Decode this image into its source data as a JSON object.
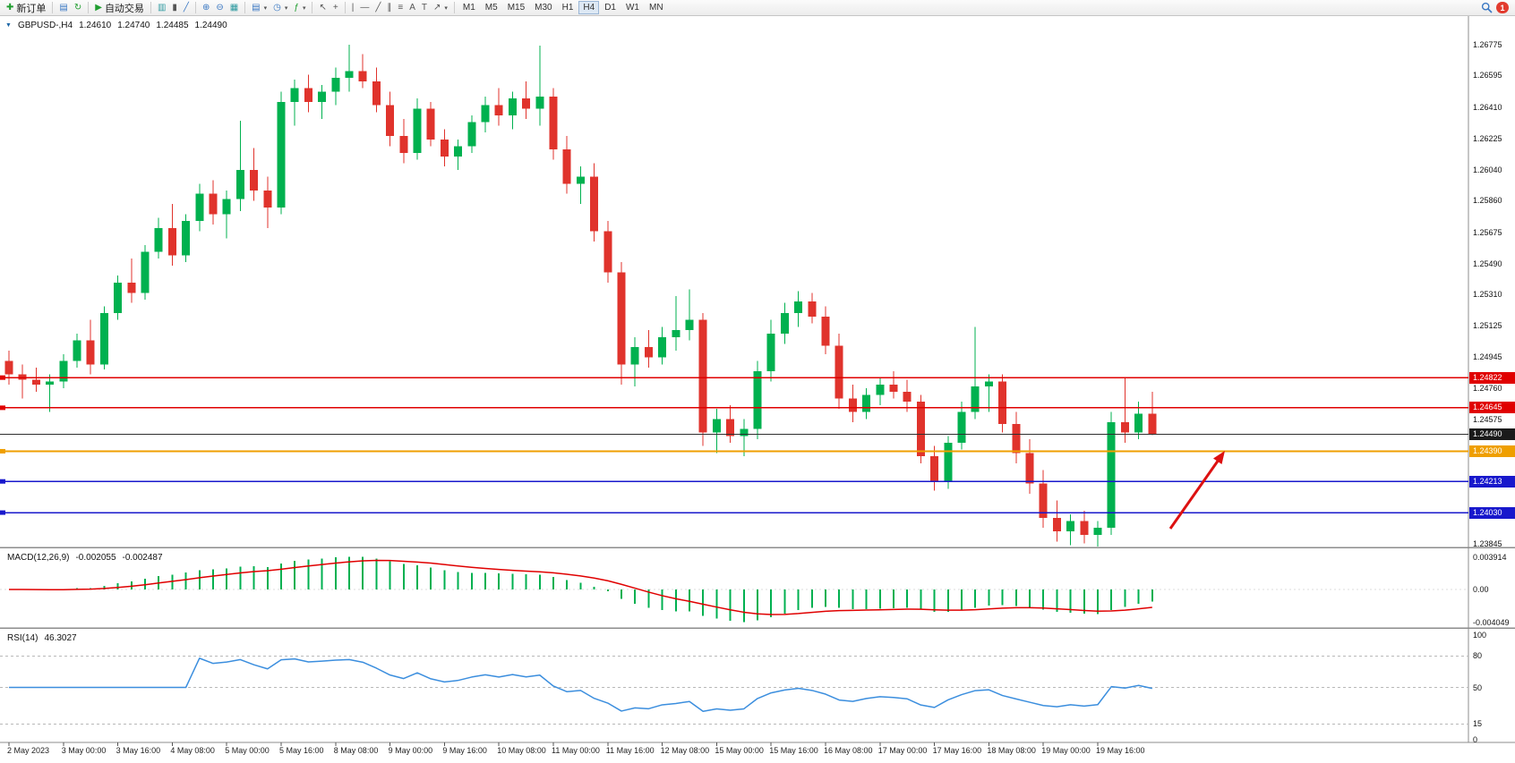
{
  "toolbar": {
    "new_order": "新订单",
    "auto_trading": "自动交易",
    "timeframes": [
      "M1",
      "M5",
      "M15",
      "M30",
      "H1",
      "H4",
      "D1",
      "W1",
      "MN"
    ],
    "active_timeframe": "H4",
    "notification_count": "1"
  },
  "chart_header": {
    "symbol_timeframe": "GBPUSD-,H4",
    "open": "1.24610",
    "high": "1.24740",
    "low": "1.24485",
    "close": "1.24490"
  },
  "price_axis": {
    "labels": [
      {
        "text": "1.26775",
        "value": 1.26775
      },
      {
        "text": "1.26595",
        "value": 1.26595
      },
      {
        "text": "1.26410",
        "value": 1.2641
      },
      {
        "text": "1.26225",
        "value": 1.26225
      },
      {
        "text": "1.26040",
        "value": 1.2604
      },
      {
        "text": "1.25860",
        "value": 1.2586
      },
      {
        "text": "1.25675",
        "value": 1.25675
      },
      {
        "text": "1.25490",
        "value": 1.2549
      },
      {
        "text": "1.25310",
        "value": 1.2531
      },
      {
        "text": "1.25125",
        "value": 1.25125
      },
      {
        "text": "1.24945",
        "value": 1.24945
      },
      {
        "text": "1.24760",
        "value": 1.2476
      },
      {
        "text": "1.24575",
        "value": 1.24575
      },
      {
        "text": "1.23845",
        "value": 1.23845
      }
    ],
    "tags": [
      {
        "text": "1.24822",
        "value": 1.24822,
        "color": "#e00000"
      },
      {
        "text": "1.24645",
        "value": 1.24645,
        "color": "#e00000"
      },
      {
        "text": "1.24490",
        "value": 1.2449,
        "color": "#1a1a1a"
      },
      {
        "text": "1.24390",
        "value": 1.2439,
        "color": "#ef9f00"
      },
      {
        "text": "1.24213",
        "value": 1.24213,
        "color": "#1818cc"
      },
      {
        "text": "1.24030",
        "value": 1.2403,
        "color": "#1818cc"
      }
    ]
  },
  "object_lines": [
    {
      "value": 1.24822,
      "color": "#e00000",
      "style": "solid",
      "width": 1.5,
      "marker": true
    },
    {
      "value": 1.24645,
      "color": "#e00000",
      "style": "solid",
      "width": 1.5,
      "marker": true
    },
    {
      "value": 1.2449,
      "color": "#2f2f2f",
      "style": "solid",
      "width": 1.2,
      "marker": false
    },
    {
      "value": 1.2439,
      "color": "#ef9f00",
      "style": "solid",
      "width": 1.8,
      "marker": true
    },
    {
      "value": 1.24213,
      "color": "#1818cc",
      "style": "solid",
      "width": 1.6,
      "marker": true
    },
    {
      "value": 1.2403,
      "color": "#1818cc",
      "style": "solid",
      "width": 1.6,
      "marker": true
    }
  ],
  "chart_data": {
    "type": "candlestick",
    "symbol": "GBPUSD",
    "timeframe": "H4",
    "y_range": [
      1.23845,
      1.26775
    ],
    "up_color": "#00b14f",
    "down_color": "#e0332c",
    "label_step": 4,
    "time_labels": [
      "2 May 2023",
      "3 May 00:00",
      "3 May 16:00",
      "4 May 08:00",
      "5 May 00:00",
      "5 May 16:00",
      "8 May 08:00",
      "9 May 00:00",
      "9 May 16:00",
      "10 May 08:00",
      "11 May 00:00",
      "11 May 16:00",
      "12 May 08:00",
      "15 May 00:00",
      "15 May 16:00",
      "16 May 08:00",
      "17 May 00:00",
      "17 May 16:00",
      "18 May 08:00",
      "19 May 00:00",
      "19 May 16:00"
    ],
    "candles_ohlc": [
      [
        1.2492,
        1.2498,
        1.2478,
        1.2484
      ],
      [
        1.2484,
        1.249,
        1.247,
        1.2481
      ],
      [
        1.2481,
        1.2488,
        1.2474,
        1.2478
      ],
      [
        1.2478,
        1.2484,
        1.2462,
        1.248
      ],
      [
        1.248,
        1.2496,
        1.2476,
        1.2492
      ],
      [
        1.2492,
        1.2508,
        1.2488,
        1.2504
      ],
      [
        1.2504,
        1.2516,
        1.2484,
        1.249
      ],
      [
        1.249,
        1.2524,
        1.2487,
        1.252
      ],
      [
        1.252,
        1.2542,
        1.2516,
        1.2538
      ],
      [
        1.2538,
        1.2552,
        1.2526,
        1.2532
      ],
      [
        1.2532,
        1.256,
        1.2528,
        1.2556
      ],
      [
        1.2556,
        1.2576,
        1.2552,
        1.257
      ],
      [
        1.257,
        1.2584,
        1.2548,
        1.2554
      ],
      [
        1.2554,
        1.2578,
        1.255,
        1.2574
      ],
      [
        1.2574,
        1.2596,
        1.2568,
        1.259
      ],
      [
        1.259,
        1.2598,
        1.2572,
        1.2578
      ],
      [
        1.2578,
        1.2592,
        1.2564,
        1.2587
      ],
      [
        1.2587,
        1.2633,
        1.258,
        1.2604
      ],
      [
        1.2604,
        1.2617,
        1.2586,
        1.2592
      ],
      [
        1.2592,
        1.26,
        1.257,
        1.2582
      ],
      [
        1.2582,
        1.265,
        1.2578,
        1.2644
      ],
      [
        1.2644,
        1.2657,
        1.263,
        1.2652
      ],
      [
        1.2652,
        1.266,
        1.2638,
        1.2644
      ],
      [
        1.2644,
        1.2654,
        1.2634,
        1.265
      ],
      [
        1.265,
        1.2664,
        1.2642,
        1.2658
      ],
      [
        1.2658,
        1.26775,
        1.265,
        1.2662
      ],
      [
        1.2662,
        1.2672,
        1.2652,
        1.2656
      ],
      [
        1.2656,
        1.2664,
        1.2638,
        1.2642
      ],
      [
        1.2642,
        1.265,
        1.2618,
        1.2624
      ],
      [
        1.2624,
        1.2634,
        1.2608,
        1.2614
      ],
      [
        1.2614,
        1.2646,
        1.261,
        1.264
      ],
      [
        1.264,
        1.2644,
        1.2618,
        1.2622
      ],
      [
        1.2622,
        1.2628,
        1.2606,
        1.2612
      ],
      [
        1.2612,
        1.2622,
        1.2604,
        1.2618
      ],
      [
        1.2618,
        1.2636,
        1.2614,
        1.2632
      ],
      [
        1.2632,
        1.2647,
        1.2626,
        1.2642
      ],
      [
        1.2642,
        1.2652,
        1.263,
        1.2636
      ],
      [
        1.2636,
        1.265,
        1.2628,
        1.2646
      ],
      [
        1.2646,
        1.2656,
        1.2634,
        1.264
      ],
      [
        1.264,
        1.2677,
        1.263,
        1.2647
      ],
      [
        1.2647,
        1.2652,
        1.261,
        1.2616
      ],
      [
        1.2616,
        1.2624,
        1.259,
        1.2596
      ],
      [
        1.2596,
        1.2606,
        1.2584,
        1.26
      ],
      [
        1.26,
        1.2608,
        1.2562,
        1.2568
      ],
      [
        1.2568,
        1.2574,
        1.2538,
        1.2544
      ],
      [
        1.2544,
        1.255,
        1.2478,
        1.249
      ],
      [
        1.249,
        1.2506,
        1.2477,
        1.25
      ],
      [
        1.25,
        1.251,
        1.2488,
        1.2494
      ],
      [
        1.2494,
        1.2512,
        1.249,
        1.2506
      ],
      [
        1.2506,
        1.253,
        1.2498,
        1.251
      ],
      [
        1.251,
        1.2534,
        1.2504,
        1.2516
      ],
      [
        1.2516,
        1.252,
        1.2442,
        1.245
      ],
      [
        1.245,
        1.2464,
        1.2438,
        1.2458
      ],
      [
        1.2458,
        1.2466,
        1.2444,
        1.2448
      ],
      [
        1.2448,
        1.2458,
        1.2436,
        1.2452
      ],
      [
        1.2452,
        1.2492,
        1.2446,
        1.2486
      ],
      [
        1.2486,
        1.2516,
        1.248,
        1.2508
      ],
      [
        1.2508,
        1.2526,
        1.2502,
        1.252
      ],
      [
        1.252,
        1.2533,
        1.2512,
        1.2527
      ],
      [
        1.2527,
        1.2532,
        1.2514,
        1.2518
      ],
      [
        1.2518,
        1.2524,
        1.2496,
        1.2501
      ],
      [
        1.2501,
        1.2508,
        1.2464,
        1.247
      ],
      [
        1.247,
        1.2478,
        1.2456,
        1.2462
      ],
      [
        1.2462,
        1.2476,
        1.2458,
        1.2472
      ],
      [
        1.2472,
        1.2482,
        1.2466,
        1.2478
      ],
      [
        1.2478,
        1.2486,
        1.247,
        1.2474
      ],
      [
        1.2474,
        1.2481,
        1.2462,
        1.2468
      ],
      [
        1.2468,
        1.2472,
        1.2432,
        1.2436
      ],
      [
        1.2436,
        1.2442,
        1.2416,
        1.2421
      ],
      [
        1.2421,
        1.2448,
        1.2417,
        1.2444
      ],
      [
        1.2444,
        1.2468,
        1.244,
        1.2462
      ],
      [
        1.2462,
        1.2512,
        1.2458,
        1.2477
      ],
      [
        1.2477,
        1.2484,
        1.2462,
        1.248
      ],
      [
        1.248,
        1.2484,
        1.245,
        1.2455
      ],
      [
        1.2455,
        1.2462,
        1.2432,
        1.2438
      ],
      [
        1.2438,
        1.2446,
        1.2414,
        1.242
      ],
      [
        1.242,
        1.2428,
        1.2394,
        1.24
      ],
      [
        1.24,
        1.241,
        1.2386,
        1.2392
      ],
      [
        1.2392,
        1.2402,
        1.2384,
        1.2398
      ],
      [
        1.2398,
        1.2404,
        1.2385,
        1.239
      ],
      [
        1.239,
        1.2398,
        1.2383,
        1.2394
      ],
      [
        1.2394,
        1.2462,
        1.239,
        1.2456
      ],
      [
        1.2456,
        1.2482,
        1.2444,
        1.245
      ],
      [
        1.245,
        1.2468,
        1.2446,
        1.2461
      ],
      [
        1.2461,
        1.2474,
        1.24485,
        1.2449
      ]
    ]
  },
  "macd_panel": {
    "name": "MACD(12,26,9)",
    "value_main": "-0.002055",
    "value_signal": "-0.002487",
    "fast": 12,
    "slow": 26,
    "signal": 9,
    "axis_labels": [
      {
        "text": "0.003914",
        "value": 0.003914
      },
      {
        "text": "0.00",
        "value": 0
      },
      {
        "text": "-0.004049",
        "value": -0.004049
      }
    ],
    "histogram_color": "#00b050",
    "signal_color": "#e00000"
  },
  "rsi_panel": {
    "name": "RSI(14)",
    "value": "46.3027",
    "period": 14,
    "axis_labels": [
      {
        "text": "100",
        "value": 100
      },
      {
        "text": "80",
        "value": 80
      },
      {
        "text": "50",
        "value": 50
      },
      {
        "text": "15",
        "value": 15
      },
      {
        "text": "0",
        "value": 0
      }
    ],
    "levels": [
      80,
      50,
      15
    ],
    "line_color": "#3b8ede"
  },
  "annotations": {
    "arrow": {
      "color": "#dd1111",
      "direction": "up-right"
    }
  }
}
